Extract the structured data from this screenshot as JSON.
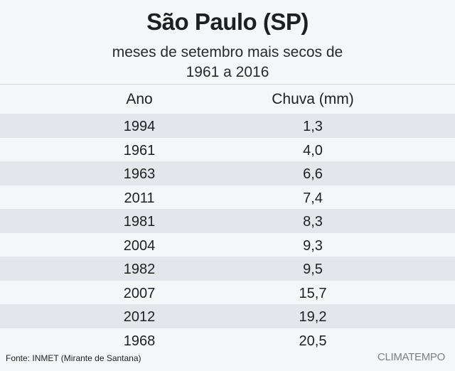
{
  "chart_data": {
    "type": "table",
    "title": "São Paulo (SP)",
    "subtitle_line1": "meses de setembro mais secos de",
    "subtitle_line2": "1961 a 2016",
    "columns": [
      "Ano",
      "Chuva (mm)"
    ],
    "rows": [
      {
        "year": "1994",
        "rain": "1,3"
      },
      {
        "year": "1961",
        "rain": "4,0"
      },
      {
        "year": "1963",
        "rain": "6,6"
      },
      {
        "year": "2011",
        "rain": "7,4"
      },
      {
        "year": "1981",
        "rain": "8,3"
      },
      {
        "year": "2004",
        "rain": "9,3"
      },
      {
        "year": "1982",
        "rain": "9,5"
      },
      {
        "year": "2007",
        "rain": "15,7"
      },
      {
        "year": "2012",
        "rain": "19,2"
      },
      {
        "year": "1968",
        "rain": "20,5"
      }
    ]
  },
  "footer": {
    "source": "Fonte: INMET (Mirante de Santana)",
    "brand": "CLIMATEMPO"
  },
  "colors": {
    "background": "#f4f6f8",
    "row_shade": "#e3e7eb",
    "text": "#1f1f1f",
    "brand": "#7a8087"
  }
}
